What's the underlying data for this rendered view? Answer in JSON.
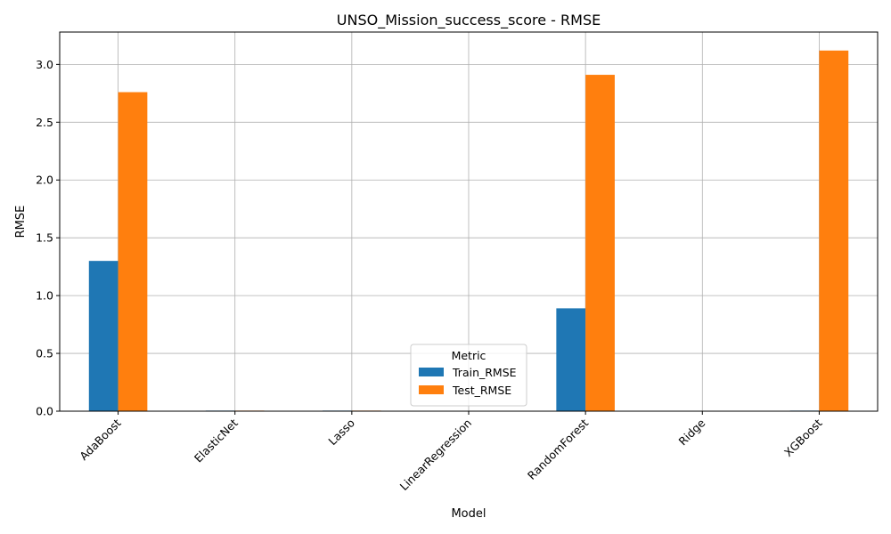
{
  "chart_data": {
    "type": "bar",
    "title": "UNSO_Mission_success_score - RMSE",
    "xlabel": "Model",
    "ylabel": "RMSE",
    "categories": [
      "AdaBoost",
      "ElasticNet",
      "Lasso",
      "LinearRegression",
      "RandomForest",
      "Ridge",
      "XGBoost"
    ],
    "series": [
      {
        "name": "Train_RMSE",
        "color": "#1f77b4",
        "values": [
          1.3,
          0.005,
          0.005,
          0.0,
          0.89,
          0.0,
          0.005
        ]
      },
      {
        "name": "Test_RMSE",
        "color": "#ff7f0e",
        "values": [
          2.76,
          0.005,
          0.005,
          0.0,
          2.91,
          0.0,
          3.12
        ]
      }
    ],
    "ylim": [
      0,
      3.28
    ],
    "yticks": [
      "0.0",
      "0.5",
      "1.0",
      "1.5",
      "2.0",
      "2.5",
      "3.0"
    ],
    "grid": true,
    "legend": {
      "title": "Metric",
      "placement": "lower-center"
    }
  }
}
